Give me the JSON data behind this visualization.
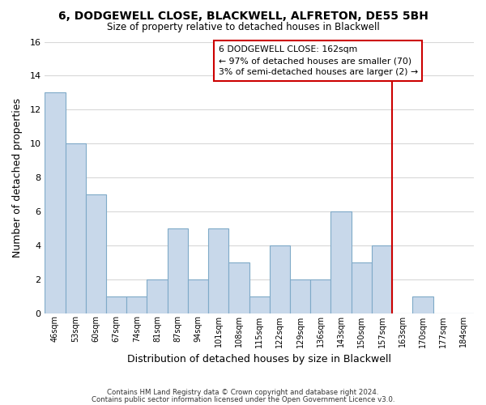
{
  "title1": "6, DODGEWELL CLOSE, BLACKWELL, ALFRETON, DE55 5BH",
  "title2": "Size of property relative to detached houses in Blackwell",
  "xlabel": "Distribution of detached houses by size in Blackwell",
  "ylabel": "Number of detached properties",
  "bar_labels": [
    "46sqm",
    "53sqm",
    "60sqm",
    "67sqm",
    "74sqm",
    "81sqm",
    "87sqm",
    "94sqm",
    "101sqm",
    "108sqm",
    "115sqm",
    "122sqm",
    "129sqm",
    "136sqm",
    "143sqm",
    "150sqm",
    "157sqm",
    "163sqm",
    "170sqm",
    "177sqm",
    "184sqm"
  ],
  "bar_values": [
    13,
    10,
    7,
    1,
    1,
    2,
    5,
    2,
    5,
    3,
    1,
    4,
    2,
    2,
    6,
    3,
    4,
    0,
    1,
    0,
    0
  ],
  "bar_color": "#c8d8ea",
  "bar_edge_color": "#7faac8",
  "ylim": [
    0,
    16
  ],
  "yticks": [
    0,
    2,
    4,
    6,
    8,
    10,
    12,
    14,
    16
  ],
  "vline_color": "#cc0000",
  "annotation_title": "6 DODGEWELL CLOSE: 162sqm",
  "annotation_line1": "← 97% of detached houses are smaller (70)",
  "annotation_line2": "3% of semi-detached houses are larger (2) →",
  "annotation_box_color": "#ffffff",
  "annotation_border_color": "#cc0000",
  "footer1": "Contains HM Land Registry data © Crown copyright and database right 2024.",
  "footer2": "Contains public sector information licensed under the Open Government Licence v3.0.",
  "background_color": "#ffffff",
  "grid_color": "#d8d8d8"
}
